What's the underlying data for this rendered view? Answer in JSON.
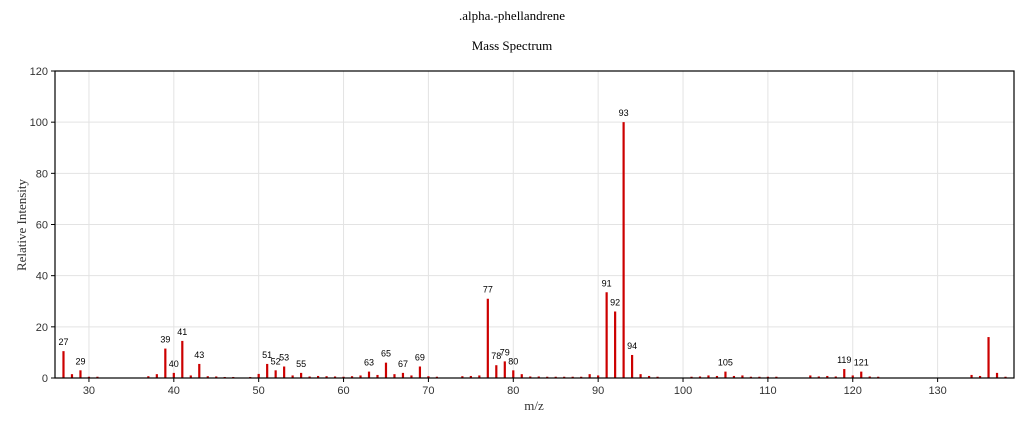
{
  "chart_data": {
    "type": "bar",
    "title": ".alpha.-phellandrene",
    "subtitle": "Mass Spectrum",
    "xlabel": "m/z",
    "ylabel": "Relative Intensity",
    "xlim": [
      26,
      139
    ],
    "ylim": [
      0,
      120
    ],
    "xticks": [
      30,
      40,
      50,
      60,
      70,
      80,
      90,
      100,
      110,
      120,
      130
    ],
    "yticks": [
      0,
      20,
      40,
      60,
      80,
      100,
      120
    ],
    "grid": true,
    "bar_color": "#cc0000",
    "peaks": [
      {
        "mz": 27,
        "intensity": 10.5,
        "label": "27"
      },
      {
        "mz": 28,
        "intensity": 1.5
      },
      {
        "mz": 29,
        "intensity": 3.0,
        "label": "29"
      },
      {
        "mz": 30,
        "intensity": 0.5
      },
      {
        "mz": 31,
        "intensity": 0.5
      },
      {
        "mz": 37,
        "intensity": 0.7
      },
      {
        "mz": 38,
        "intensity": 1.5
      },
      {
        "mz": 39,
        "intensity": 11.5,
        "label": "39"
      },
      {
        "mz": 40,
        "intensity": 2.0,
        "label": "40"
      },
      {
        "mz": 41,
        "intensity": 14.5,
        "label": "41"
      },
      {
        "mz": 42,
        "intensity": 1.0
      },
      {
        "mz": 43,
        "intensity": 5.5,
        "label": "43"
      },
      {
        "mz": 44,
        "intensity": 0.7
      },
      {
        "mz": 45,
        "intensity": 0.6
      },
      {
        "mz": 46,
        "intensity": 0.4
      },
      {
        "mz": 47,
        "intensity": 0.4
      },
      {
        "mz": 49,
        "intensity": 0.4
      },
      {
        "mz": 50,
        "intensity": 1.6
      },
      {
        "mz": 51,
        "intensity": 5.5,
        "label": "51"
      },
      {
        "mz": 52,
        "intensity": 3.0,
        "label": "52"
      },
      {
        "mz": 53,
        "intensity": 4.5,
        "label": "53"
      },
      {
        "mz": 54,
        "intensity": 1.0
      },
      {
        "mz": 55,
        "intensity": 2.0,
        "label": "55"
      },
      {
        "mz": 56,
        "intensity": 0.6
      },
      {
        "mz": 57,
        "intensity": 0.8
      },
      {
        "mz": 58,
        "intensity": 0.7
      },
      {
        "mz": 59,
        "intensity": 0.6
      },
      {
        "mz": 60,
        "intensity": 0.5
      },
      {
        "mz": 61,
        "intensity": 0.7
      },
      {
        "mz": 62,
        "intensity": 1.0
      },
      {
        "mz": 63,
        "intensity": 2.5,
        "label": "63"
      },
      {
        "mz": 64,
        "intensity": 1.2
      },
      {
        "mz": 65,
        "intensity": 6.0,
        "label": "65"
      },
      {
        "mz": 66,
        "intensity": 1.5
      },
      {
        "mz": 67,
        "intensity": 2.0,
        "label": "67"
      },
      {
        "mz": 68,
        "intensity": 1.0
      },
      {
        "mz": 69,
        "intensity": 4.5,
        "label": "69"
      },
      {
        "mz": 70,
        "intensity": 0.7
      },
      {
        "mz": 71,
        "intensity": 0.5
      },
      {
        "mz": 74,
        "intensity": 0.7
      },
      {
        "mz": 75,
        "intensity": 0.8
      },
      {
        "mz": 76,
        "intensity": 1.0
      },
      {
        "mz": 77,
        "intensity": 31.0,
        "label": "77"
      },
      {
        "mz": 78,
        "intensity": 5.0,
        "label": "78"
      },
      {
        "mz": 79,
        "intensity": 6.5,
        "label": "79"
      },
      {
        "mz": 80,
        "intensity": 3.0,
        "label": "80"
      },
      {
        "mz": 81,
        "intensity": 1.5
      },
      {
        "mz": 82,
        "intensity": 0.6
      },
      {
        "mz": 83,
        "intensity": 0.6
      },
      {
        "mz": 84,
        "intensity": 0.5
      },
      {
        "mz": 85,
        "intensity": 0.5
      },
      {
        "mz": 86,
        "intensity": 0.5
      },
      {
        "mz": 87,
        "intensity": 0.5
      },
      {
        "mz": 88,
        "intensity": 0.5
      },
      {
        "mz": 89,
        "intensity": 1.5
      },
      {
        "mz": 90,
        "intensity": 1.0
      },
      {
        "mz": 91,
        "intensity": 33.5,
        "label": "91"
      },
      {
        "mz": 92,
        "intensity": 26.0,
        "label": "92"
      },
      {
        "mz": 93,
        "intensity": 100.0,
        "label": "93"
      },
      {
        "mz": 94,
        "intensity": 9.0,
        "label": "94"
      },
      {
        "mz": 95,
        "intensity": 1.5
      },
      {
        "mz": 96,
        "intensity": 0.8
      },
      {
        "mz": 97,
        "intensity": 0.5
      },
      {
        "mz": 101,
        "intensity": 0.5
      },
      {
        "mz": 102,
        "intensity": 0.6
      },
      {
        "mz": 103,
        "intensity": 1.0
      },
      {
        "mz": 104,
        "intensity": 0.8
      },
      {
        "mz": 105,
        "intensity": 2.5,
        "label": "105"
      },
      {
        "mz": 106,
        "intensity": 0.8
      },
      {
        "mz": 107,
        "intensity": 1.0
      },
      {
        "mz": 108,
        "intensity": 0.5
      },
      {
        "mz": 109,
        "intensity": 0.5
      },
      {
        "mz": 110,
        "intensity": 0.5
      },
      {
        "mz": 111,
        "intensity": 0.5
      },
      {
        "mz": 115,
        "intensity": 1.0
      },
      {
        "mz": 116,
        "intensity": 0.6
      },
      {
        "mz": 117,
        "intensity": 0.8
      },
      {
        "mz": 118,
        "intensity": 0.6
      },
      {
        "mz": 119,
        "intensity": 3.5,
        "label": "119"
      },
      {
        "mz": 120,
        "intensity": 1.0
      },
      {
        "mz": 121,
        "intensity": 2.5,
        "label": "121"
      },
      {
        "mz": 122,
        "intensity": 0.6
      },
      {
        "mz": 123,
        "intensity": 0.5
      },
      {
        "mz": 134,
        "intensity": 1.2
      },
      {
        "mz": 135,
        "intensity": 0.8
      },
      {
        "mz": 136,
        "intensity": 16.0
      },
      {
        "mz": 137,
        "intensity": 2.0
      },
      {
        "mz": 138,
        "intensity": 0.5
      }
    ]
  }
}
